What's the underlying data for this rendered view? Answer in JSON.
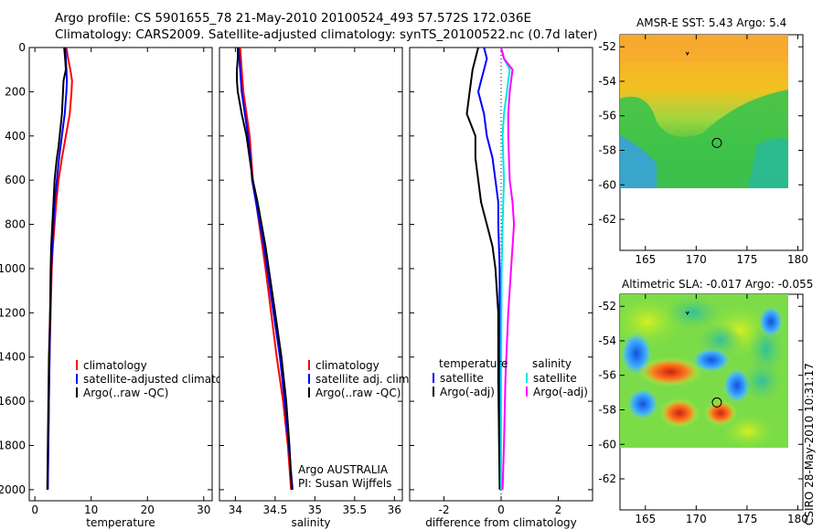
{
  "header": {
    "line1": "Argo profile: CS 5901655_78 21-May-2010 20100524_493 57.572S 172.036E",
    "line2": "Climatology: CARS2009. Satellite-adjusted climatology: synTS_20100522.nc (0.7d later)"
  },
  "credit": "CSIRO 28-May-2010 10:31:17",
  "colors": {
    "red": "#ff0000",
    "blue": "#0000ff",
    "black": "#000000",
    "cyan": "#00e5e5",
    "magenta": "#ff00ff"
  },
  "chart_data": [
    {
      "type": "line",
      "name": "temperature-profile",
      "xlabel": "temperature",
      "xlim": [
        -1,
        31.5
      ],
      "ylim": [
        0,
        2050
      ],
      "xticks": [
        0,
        10,
        20,
        30
      ],
      "yticks": [
        0,
        200,
        400,
        600,
        800,
        1000,
        1200,
        1400,
        1600,
        1800,
        2000
      ],
      "legend": [
        "climatology",
        "satellite-adjusted climatology",
        "Argo(..raw -QC)"
      ],
      "series": [
        {
          "name": "climatology",
          "color": "red",
          "points": [
            [
              5.6,
              0
            ],
            [
              5.9,
              50
            ],
            [
              6.3,
              100
            ],
            [
              6.6,
              150
            ],
            [
              6.5,
              200
            ],
            [
              6.2,
              300
            ],
            [
              5.5,
              400
            ],
            [
              4.8,
              500
            ],
            [
              4.2,
              600
            ],
            [
              3.8,
              700
            ],
            [
              3.5,
              800
            ],
            [
              3.2,
              900
            ],
            [
              3.0,
              1000
            ],
            [
              2.8,
              1200
            ],
            [
              2.6,
              1400
            ],
            [
              2.5,
              1600
            ],
            [
              2.4,
              1800
            ],
            [
              2.3,
              2000
            ]
          ]
        },
        {
          "name": "satellite-adjusted climatology",
          "color": "blue",
          "points": [
            [
              5.4,
              0
            ],
            [
              5.5,
              50
            ],
            [
              5.6,
              100
            ],
            [
              5.7,
              150
            ],
            [
              5.6,
              200
            ],
            [
              5.3,
              300
            ],
            [
              4.8,
              400
            ],
            [
              4.3,
              500
            ],
            [
              3.9,
              600
            ],
            [
              3.5,
              700
            ],
            [
              3.3,
              800
            ],
            [
              3.1,
              900
            ],
            [
              2.9,
              1000
            ],
            [
              2.7,
              1200
            ],
            [
              2.6,
              1400
            ],
            [
              2.5,
              1600
            ],
            [
              2.4,
              1800
            ],
            [
              2.3,
              2000
            ]
          ]
        },
        {
          "name": "Argo(..raw -QC)",
          "color": "black",
          "points": [
            [
              5.2,
              0
            ],
            [
              5.3,
              30
            ],
            [
              5.4,
              60
            ],
            [
              5.5,
              100
            ],
            [
              5.1,
              150
            ],
            [
              5.0,
              200
            ],
            [
              4.9,
              250
            ],
            [
              4.8,
              300
            ],
            [
              4.6,
              350
            ],
            [
              4.4,
              400
            ],
            [
              4.2,
              450
            ],
            [
              3.9,
              500
            ],
            [
              3.7,
              550
            ],
            [
              3.5,
              600
            ],
            [
              3.3,
              700
            ],
            [
              3.1,
              800
            ],
            [
              2.9,
              900
            ],
            [
              2.8,
              1000
            ],
            [
              2.7,
              1200
            ],
            [
              2.5,
              1400
            ],
            [
              2.4,
              1600
            ],
            [
              2.3,
              1800
            ],
            [
              2.2,
              2000
            ]
          ]
        }
      ]
    },
    {
      "type": "line",
      "name": "salinity-profile",
      "xlabel": "salinity",
      "xlim": [
        33.8,
        36.1
      ],
      "ylim": [
        0,
        2050
      ],
      "xticks": [
        34,
        34.5,
        35,
        35.5,
        36
      ],
      "yticks": [
        0,
        200,
        400,
        600,
        800,
        1000,
        1200,
        1400,
        1600,
        1800,
        2000
      ],
      "legend": [
        "climatology",
        "satellite adj. clim.",
        "Argo(..raw -QC)"
      ],
      "annotations": [
        "Argo AUSTRALIA",
        "PI: Susan Wijffels"
      ],
      "series": [
        {
          "name": "climatology",
          "color": "red",
          "points": [
            [
              34.06,
              0
            ],
            [
              34.07,
              50
            ],
            [
              34.08,
              100
            ],
            [
              34.1,
              200
            ],
            [
              34.14,
              300
            ],
            [
              34.18,
              400
            ],
            [
              34.2,
              500
            ],
            [
              34.22,
              600
            ],
            [
              34.26,
              700
            ],
            [
              34.3,
              800
            ],
            [
              34.34,
              900
            ],
            [
              34.38,
              1000
            ],
            [
              34.45,
              1200
            ],
            [
              34.52,
              1400
            ],
            [
              34.6,
              1600
            ],
            [
              34.66,
              1800
            ],
            [
              34.7,
              2000
            ]
          ]
        },
        {
          "name": "satellite adj. clim.",
          "color": "blue",
          "points": [
            [
              34.04,
              0
            ],
            [
              34.05,
              50
            ],
            [
              34.06,
              100
            ],
            [
              34.08,
              200
            ],
            [
              34.12,
              300
            ],
            [
              34.16,
              400
            ],
            [
              34.19,
              500
            ],
            [
              34.21,
              600
            ],
            [
              34.26,
              700
            ],
            [
              34.31,
              800
            ],
            [
              34.36,
              900
            ],
            [
              34.4,
              1000
            ],
            [
              34.48,
              1200
            ],
            [
              34.56,
              1400
            ],
            [
              34.62,
              1600
            ],
            [
              34.67,
              1800
            ],
            [
              34.72,
              2000
            ]
          ]
        },
        {
          "name": "Argo(..raw -QC)",
          "color": "black",
          "points": [
            [
              34.03,
              0
            ],
            [
              34.03,
              50
            ],
            [
              34.02,
              100
            ],
            [
              34.02,
              150
            ],
            [
              34.03,
              200
            ],
            [
              34.08,
              300
            ],
            [
              34.14,
              400
            ],
            [
              34.18,
              500
            ],
            [
              34.22,
              600
            ],
            [
              34.28,
              700
            ],
            [
              34.33,
              800
            ],
            [
              34.38,
              900
            ],
            [
              34.42,
              1000
            ],
            [
              34.5,
              1200
            ],
            [
              34.58,
              1400
            ],
            [
              34.64,
              1600
            ],
            [
              34.68,
              1800
            ],
            [
              34.71,
              2000
            ]
          ]
        }
      ]
    },
    {
      "type": "line",
      "name": "difference-profile",
      "xlabel": "difference from climatology",
      "xlim": [
        -3.2,
        3.2
      ],
      "ylim": [
        0,
        2050
      ],
      "xticks": [
        -2,
        0,
        2
      ],
      "yticks": [
        0,
        200,
        400,
        600,
        800,
        1000,
        1200,
        1400,
        1600,
        1800,
        2000
      ],
      "legend_temperature": {
        "title": "temperature",
        "items": [
          "satellite",
          "Argo(-adj)"
        ]
      },
      "legend_salinity": {
        "title": "salinity",
        "items": [
          "satellite",
          "Argo(-adj)"
        ]
      },
      "series": [
        {
          "name": "temperature satellite",
          "color": "blue",
          "points": [
            [
              -0.6,
              0
            ],
            [
              -0.5,
              50
            ],
            [
              -0.6,
              100
            ],
            [
              -0.7,
              150
            ],
            [
              -0.8,
              200
            ],
            [
              -0.6,
              300
            ],
            [
              -0.5,
              400
            ],
            [
              -0.3,
              500
            ],
            [
              -0.2,
              600
            ],
            [
              -0.1,
              700
            ],
            [
              -0.1,
              800
            ],
            [
              -0.05,
              1000
            ],
            [
              -0.05,
              1500
            ],
            [
              0,
              2000
            ]
          ]
        },
        {
          "name": "temperature Argo(-adj)",
          "color": "black",
          "points": [
            [
              -0.8,
              0
            ],
            [
              -0.9,
              50
            ],
            [
              -1.0,
              100
            ],
            [
              -1.1,
              200
            ],
            [
              -1.2,
              300
            ],
            [
              -0.9,
              400
            ],
            [
              -0.9,
              500
            ],
            [
              -0.8,
              600
            ],
            [
              -0.7,
              700
            ],
            [
              -0.5,
              800
            ],
            [
              -0.3,
              900
            ],
            [
              -0.2,
              1000
            ],
            [
              -0.1,
              1200
            ],
            [
              -0.1,
              1500
            ],
            [
              -0.05,
              2000
            ]
          ]
        },
        {
          "name": "salinity satellite",
          "color": "cyan",
          "points": [
            [
              0.0,
              0
            ],
            [
              0.1,
              50
            ],
            [
              0.3,
              100
            ],
            [
              0.2,
              200
            ],
            [
              0.1,
              300
            ],
            [
              0.05,
              400
            ],
            [
              0.1,
              600
            ],
            [
              0.05,
              800
            ],
            [
              0.02,
              1000
            ],
            [
              0.0,
              1500
            ],
            [
              0.0,
              2000
            ]
          ]
        },
        {
          "name": "salinity Argo(-adj)",
          "color": "magenta",
          "points": [
            [
              0.0,
              0
            ],
            [
              0.1,
              50
            ],
            [
              0.4,
              100
            ],
            [
              0.3,
              200
            ],
            [
              0.25,
              300
            ],
            [
              0.25,
              400
            ],
            [
              0.3,
              600
            ],
            [
              0.4,
              700
            ],
            [
              0.45,
              800
            ],
            [
              0.35,
              1000
            ],
            [
              0.25,
              1200
            ],
            [
              0.15,
              1500
            ],
            [
              0.1,
              1800
            ],
            [
              0.05,
              2000
            ]
          ]
        }
      ]
    },
    {
      "type": "heatmap",
      "name": "amsre-sst-map",
      "title": "AMSR-E SST: 5.43 Argo: 5.4",
      "xlim": [
        162.5,
        180.5
      ],
      "ylim": [
        -63.8,
        -51.3
      ],
      "xticks": [
        165,
        170,
        175,
        180
      ],
      "yticks": [
        -52,
        -54,
        -56,
        -58,
        -60,
        -62
      ],
      "profile_position": [
        172.036,
        -57.572
      ]
    },
    {
      "type": "heatmap",
      "name": "altimetric-sla-map",
      "title": "Altimetric SLA: -0.017 Argo: -0.055",
      "xlim": [
        162.5,
        180.5
      ],
      "ylim": [
        -63.8,
        -51.3
      ],
      "xticks": [
        165,
        170,
        175,
        180
      ],
      "yticks": [
        -52,
        -54,
        -56,
        -58,
        -60,
        -62
      ],
      "profile_position": [
        172.036,
        -57.572
      ]
    }
  ]
}
